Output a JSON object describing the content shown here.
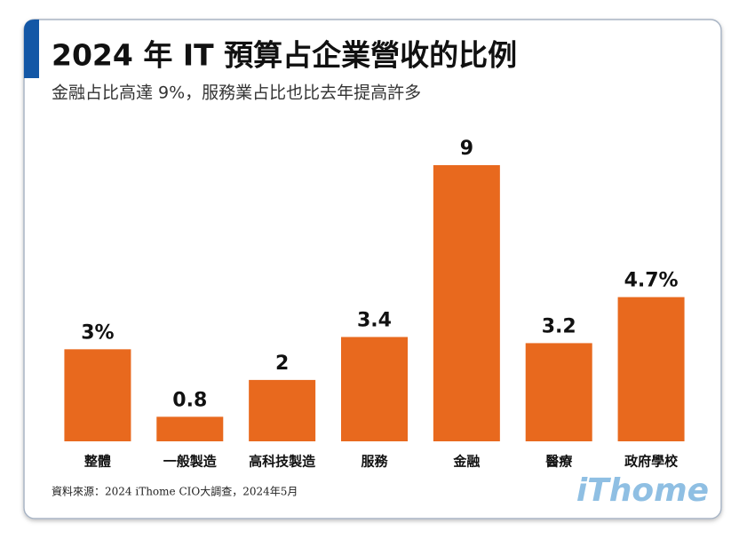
{
  "chart_data": {
    "type": "bar",
    "title": "2024 年 IT 預算占企業營收的比例",
    "subtitle": "金融占比高達 9%，服務業占比也比去年提高許多",
    "categories": [
      "整體",
      "一般製造",
      "高科技製造",
      "服務",
      "金融",
      "醫療",
      "政府學校"
    ],
    "values": [
      3,
      0.8,
      2,
      3.4,
      9,
      3.2,
      4.7
    ],
    "value_labels": [
      "3%",
      "0.8",
      "2",
      "3.4",
      "9",
      "3.2",
      "4.7%"
    ],
    "color": "#e8691e",
    "source": "資料來源：2024 iThome CIO大調查，2024年5月",
    "logo": "iThome"
  }
}
